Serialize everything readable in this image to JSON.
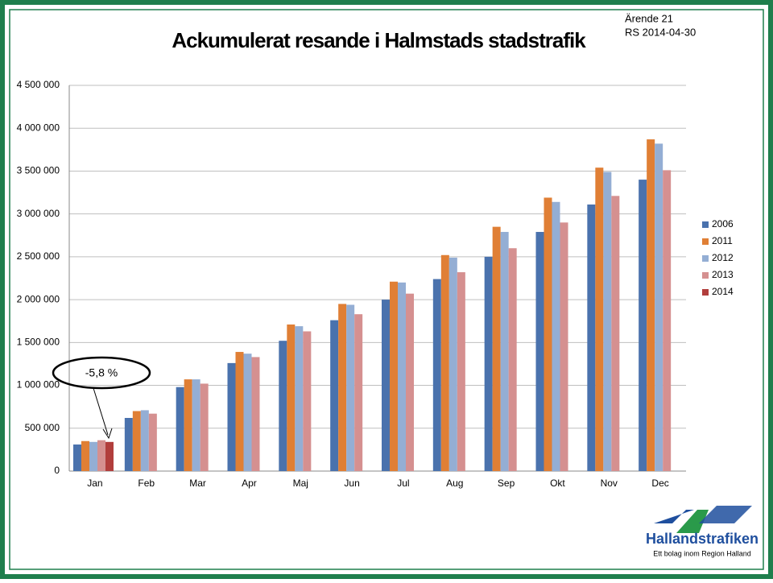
{
  "header": {
    "case": "Ärende 21",
    "date": "RS 2014-04-30"
  },
  "logo": {
    "name": "Hallandstrafiken",
    "tagline": "Ett bolag inom Region Halland"
  },
  "chart_data": {
    "type": "bar",
    "title": "Ackumulerat resande i Halmstads stadstrafik",
    "categories": [
      "Jan",
      "Feb",
      "Mar",
      "Apr",
      "Maj",
      "Jun",
      "Jul",
      "Aug",
      "Sep",
      "Okt",
      "Nov",
      "Dec"
    ],
    "series": [
      {
        "name": "2006",
        "color": "#4a72ad",
        "values": [
          310000,
          620000,
          980000,
          1260000,
          1520000,
          1760000,
          2000000,
          2240000,
          2500000,
          2790000,
          3110000,
          3400000
        ]
      },
      {
        "name": "2011",
        "color": "#e07f35",
        "values": [
          350000,
          700000,
          1070000,
          1390000,
          1710000,
          1950000,
          2210000,
          2520000,
          2850000,
          3190000,
          3540000,
          3870000
        ]
      },
      {
        "name": "2012",
        "color": "#94aed4",
        "values": [
          340000,
          710000,
          1070000,
          1370000,
          1690000,
          1940000,
          2200000,
          2490000,
          2790000,
          3140000,
          3490000,
          3820000
        ]
      },
      {
        "name": "2013",
        "color": "#d59090",
        "values": [
          360000,
          670000,
          1020000,
          1330000,
          1630000,
          1830000,
          2070000,
          2320000,
          2600000,
          2900000,
          3210000,
          3510000
        ]
      },
      {
        "name": "2014",
        "color": "#b13e3c",
        "values": [
          340000,
          null,
          null,
          null,
          null,
          null,
          null,
          null,
          null,
          null,
          null,
          null
        ]
      }
    ],
    "ylim": [
      0,
      4500000
    ],
    "yticks": [
      0,
      {
        "value": 500000,
        "label": "500 000"
      },
      {
        "value": 1000000,
        "label": "1 000 000"
      },
      {
        "value": 1500000,
        "label": "1 500 000"
      },
      {
        "value": 2000000,
        "label": "2 000 000"
      },
      {
        "value": 2500000,
        "label": "2 500 000"
      },
      {
        "value": 3000000,
        "label": "3 000 000"
      },
      {
        "value": 3500000,
        "label": "3 500 000"
      },
      {
        "value": 4000000,
        "label": "4 000 000"
      },
      {
        "value": 4500000,
        "label": "4 500 000"
      }
    ],
    "grid": true,
    "legend": "right",
    "annotation": "-5,8 %"
  }
}
